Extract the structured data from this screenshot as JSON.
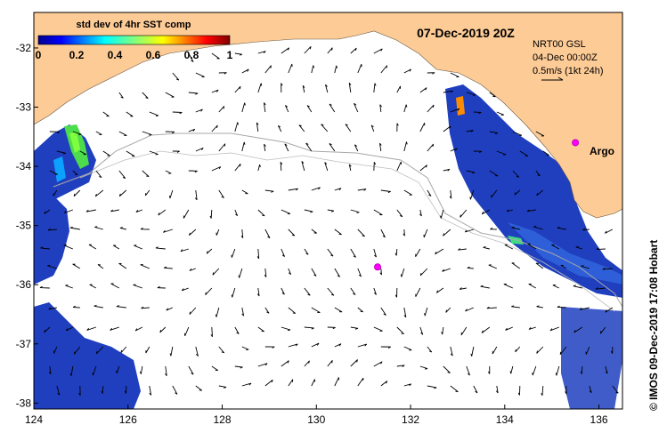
{
  "title": "07-Dec-2019 20Z",
  "colorbar": {
    "label": "std dev of 4hr SST comp",
    "ticks": [
      "0",
      "0.2",
      "0.4",
      "0.6",
      "0.8",
      "1"
    ]
  },
  "info": {
    "line1": "NRT00 GSL",
    "line2": "04-Dec 00:00Z",
    "line3": "0.5m/s (1kt 24h)"
  },
  "argo_label": "Argo",
  "credit": "© IMOS 09-Dec-2019 17:08 Hobart",
  "axes": {
    "x_ticks": [
      "124",
      "126",
      "128",
      "130",
      "132",
      "134",
      "136"
    ],
    "y_ticks": [
      "-32",
      "-33",
      "-34",
      "-35",
      "-36",
      "-37",
      "-38"
    ]
  },
  "colors": {
    "land": "#fdcb96",
    "data_blue": "#1f3fbf",
    "argo": "#ff00ff"
  },
  "argo_floats": [
    {
      "lon": 135.5,
      "lat": -33.6
    },
    {
      "lon": 131.3,
      "lat": -35.7
    }
  ]
}
